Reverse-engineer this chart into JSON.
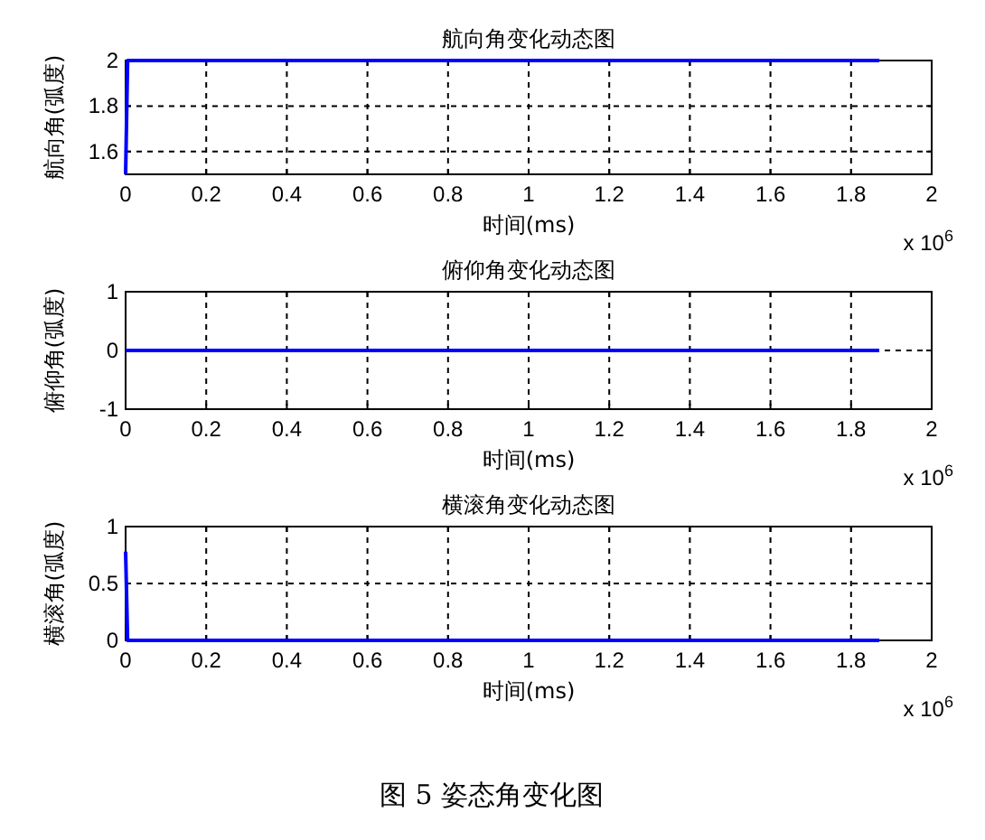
{
  "chart_data": [
    {
      "type": "line",
      "title": "航向角变化动态图",
      "xlabel": "时间(ms)",
      "ylabel": "航向角(弧度)",
      "xlim": [
        0,
        2
      ],
      "xticks": [
        0,
        0.2,
        0.4,
        0.6,
        0.8,
        1,
        1.2,
        1.4,
        1.6,
        1.8,
        2
      ],
      "ylim": [
        1.5,
        2
      ],
      "yticks": [
        1.6,
        1.8,
        2
      ],
      "grid": true,
      "annotations": [
        "x 10$^{6}$"
      ],
      "series": [
        {
          "color": "#0000ff",
          "x": [
            0,
            0.005,
            1.87
          ],
          "values": [
            1.5,
            2,
            2
          ]
        }
      ]
    },
    {
      "type": "line",
      "title": "俯仰角变化动态图",
      "xlabel": "时间(ms)",
      "ylabel": "俯仰角(弧度)",
      "xlim": [
        0,
        2
      ],
      "xticks": [
        0,
        0.2,
        0.4,
        0.6,
        0.8,
        1,
        1.2,
        1.4,
        1.6,
        1.8,
        2
      ],
      "ylim": [
        -1,
        1
      ],
      "yticks": [
        -1,
        0,
        1
      ],
      "grid": true,
      "annotations": [
        "x 10$^{6}$"
      ],
      "series": [
        {
          "color": "#0000ff",
          "x": [
            0,
            1.87
          ],
          "values": [
            0,
            0
          ]
        }
      ]
    },
    {
      "type": "line",
      "title": "横滚角变化动态图",
      "xlabel": "时间(ms)",
      "ylabel": "横滚角(弧度)",
      "xlim": [
        0,
        2
      ],
      "xticks": [
        0,
        0.2,
        0.4,
        0.6,
        0.8,
        1,
        1.2,
        1.4,
        1.6,
        1.8,
        2
      ],
      "ylim": [
        0,
        1
      ],
      "yticks": [
        0,
        0.5,
        1
      ],
      "grid": true,
      "annotations": [
        "x 10$^{6}$",
        "图 5  姿态角变化图"
      ],
      "series": [
        {
          "color": "#0000ff",
          "x": [
            0,
            0.005,
            1.87
          ],
          "values": [
            0.78,
            0,
            0
          ]
        }
      ]
    }
  ]
}
